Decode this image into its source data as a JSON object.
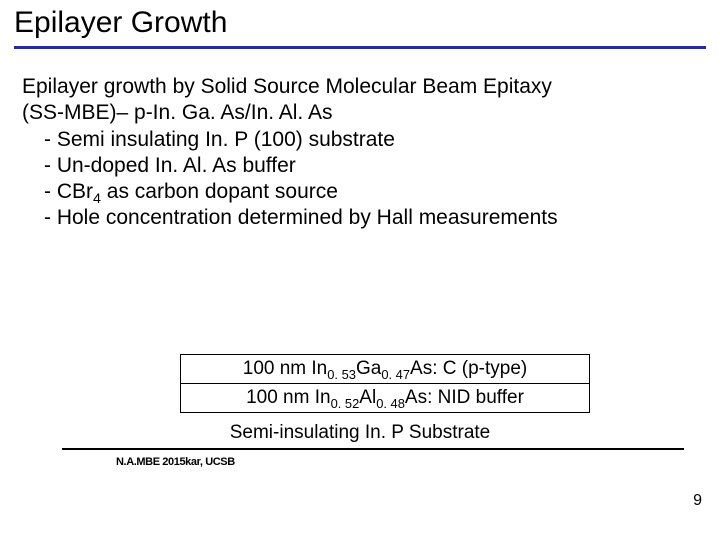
{
  "title": "Epilayer Growth",
  "intro_line1": "Epilayer growth by Solid Source Molecular Beam Epitaxy",
  "intro_line2": "(SS-MBE)– p-In. Ga. As/In. Al. As",
  "bullets": {
    "b1": "- Semi insulating In. P (100) substrate",
    "b2": "- Un-doped In. Al. As buffer",
    "b3_pre": "- CBr",
    "b3_sub": "4",
    "b3_post": " as carbon dopant source",
    "b4": "- Hole concentration determined by Hall measurements"
  },
  "diagram": {
    "layer1_pre": "100 nm In",
    "layer1_s1": "0. 53",
    "layer1_mid1": "Ga",
    "layer1_s2": "0. 47",
    "layer1_post": "As: C (p-type)",
    "layer2_pre": "100 nm In",
    "layer2_s1": "0. 52",
    "layer2_mid1": "Al",
    "layer2_s2": "0. 48",
    "layer2_post": "As: NID buffer",
    "substrate": "Semi-insulating In. P Substrate"
  },
  "footer_left": "N.A.MBE 2015kar, UCSB",
  "page_number": "9",
  "colors": {
    "rule": "#2a2aa0",
    "text": "#000000",
    "bg": "#ffffff"
  }
}
